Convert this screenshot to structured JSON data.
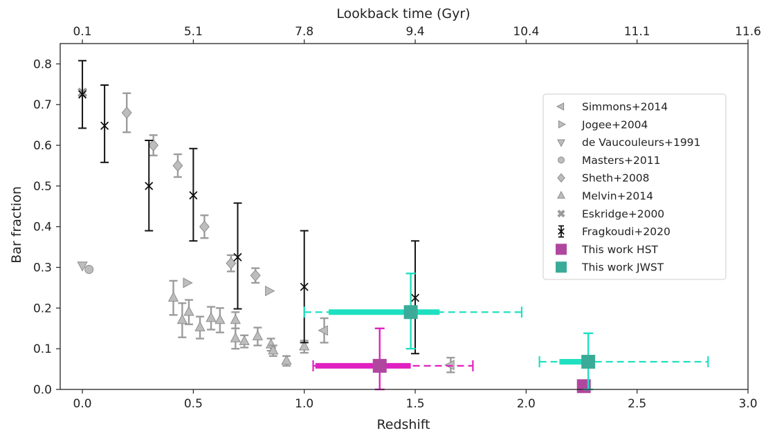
{
  "chart_data": {
    "type": "scatter",
    "xlabel": "Redshift",
    "ylabel": "Bar fraction",
    "top_xlabel": "Lookback time (Gyr)",
    "xlim": [
      -0.1,
      3.0
    ],
    "ylim": [
      0.0,
      0.85
    ],
    "x_ticks": [
      0.0,
      0.5,
      1.0,
      1.5,
      2.0,
      2.5,
      3.0
    ],
    "x_tick_labels": [
      "0.0",
      "0.5",
      "1.0",
      "1.5",
      "2.0",
      "2.5",
      "3.0"
    ],
    "y_ticks": [
      0.0,
      0.1,
      0.2,
      0.3,
      0.4,
      0.5,
      0.6,
      0.7,
      0.8
    ],
    "y_tick_labels": [
      "0.0",
      "0.1",
      "0.2",
      "0.3",
      "0.4",
      "0.5",
      "0.6",
      "0.7",
      "0.8"
    ],
    "top_ticks": [
      {
        "z": 0.0,
        "label": "0.1"
      },
      {
        "z": 0.5,
        "label": "5.1"
      },
      {
        "z": 1.0,
        "label": "7.8"
      },
      {
        "z": 1.5,
        "label": "9.4"
      },
      {
        "z": 2.0,
        "label": "10.4"
      },
      {
        "z": 2.5,
        "label": "11.1"
      },
      {
        "z": 3.0,
        "label": "11.6"
      }
    ],
    "legend_position": "right",
    "series": [
      {
        "name": "Simmons+2014",
        "marker": "triangle-left",
        "color": "#bdbdbd",
        "points": [
          {
            "x": 1.09,
            "y": 0.145,
            "err": 0.03
          },
          {
            "x": 1.66,
            "y": 0.06,
            "err": 0.018
          }
        ]
      },
      {
        "name": "Jogee+2004",
        "marker": "triangle-right",
        "color": "#bdbdbd",
        "points": [
          {
            "x": 0.47,
            "y": 0.262
          },
          {
            "x": 0.84,
            "y": 0.242
          }
        ]
      },
      {
        "name": "de Vaucouleurs+1991",
        "marker": "triangle-down",
        "color": "#bdbdbd",
        "points": [
          {
            "x": 0.0,
            "y": 0.305
          }
        ]
      },
      {
        "name": "Masters+2011",
        "marker": "circle",
        "color": "#bdbdbd",
        "points": [
          {
            "x": 0.03,
            "y": 0.295
          }
        ]
      },
      {
        "name": "Sheth+2008",
        "marker": "diamond",
        "color": "#bdbdbd",
        "points": [
          {
            "x": 0.2,
            "y": 0.68,
            "err": 0.048
          },
          {
            "x": 0.32,
            "y": 0.6,
            "err": 0.025
          },
          {
            "x": 0.43,
            "y": 0.55,
            "err": 0.028
          },
          {
            "x": 0.55,
            "y": 0.4,
            "err": 0.028
          },
          {
            "x": 0.67,
            "y": 0.31,
            "err": 0.02
          },
          {
            "x": 0.78,
            "y": 0.28,
            "err": 0.018
          }
        ]
      },
      {
        "name": "Melvin+2014",
        "marker": "triangle-up",
        "color": "#bdbdbd",
        "points": [
          {
            "x": 0.41,
            "y": 0.225,
            "err": 0.042
          },
          {
            "x": 0.45,
            "y": 0.17,
            "err": 0.042
          },
          {
            "x": 0.48,
            "y": 0.19,
            "err": 0.03
          },
          {
            "x": 0.53,
            "y": 0.152,
            "err": 0.027
          },
          {
            "x": 0.58,
            "y": 0.175,
            "err": 0.028
          },
          {
            "x": 0.62,
            "y": 0.17,
            "err": 0.03
          },
          {
            "x": 0.69,
            "y": 0.17,
            "err": 0.02
          },
          {
            "x": 0.69,
            "y": 0.125,
            "err": 0.025
          },
          {
            "x": 0.73,
            "y": 0.118,
            "err": 0.015
          },
          {
            "x": 0.79,
            "y": 0.13,
            "err": 0.022
          },
          {
            "x": 0.85,
            "y": 0.11,
            "err": 0.015
          },
          {
            "x": 0.86,
            "y": 0.095,
            "err": 0.013
          },
          {
            "x": 0.92,
            "y": 0.07,
            "err": 0.012
          },
          {
            "x": 1.0,
            "y": 0.105,
            "err": 0.015
          }
        ]
      },
      {
        "name": "Eskridge+2000",
        "marker": "x-filled",
        "color": "#bdbdbd",
        "points": [
          {
            "x": 0.0,
            "y": 0.73
          }
        ]
      },
      {
        "name": "Fragkoudi+2020",
        "marker": "x-errorbar",
        "color": "#111111",
        "points": [
          {
            "x": 0.0,
            "y": 0.725,
            "ylo": 0.642,
            "yhi": 0.808
          },
          {
            "x": 0.1,
            "y": 0.648,
            "ylo": 0.558,
            "yhi": 0.748
          },
          {
            "x": 0.3,
            "y": 0.5,
            "ylo": 0.39,
            "yhi": 0.612
          },
          {
            "x": 0.5,
            "y": 0.477,
            "ylo": 0.365,
            "yhi": 0.592
          },
          {
            "x": 0.7,
            "y": 0.325,
            "ylo": 0.198,
            "yhi": 0.458
          },
          {
            "x": 1.0,
            "y": 0.252,
            "ylo": 0.115,
            "yhi": 0.39
          },
          {
            "x": 1.5,
            "y": 0.225,
            "ylo": 0.088,
            "yhi": 0.365
          }
        ]
      },
      {
        "name": "This work HST",
        "marker": "square",
        "color": "#b0479e",
        "points": [
          {
            "x": 1.34,
            "y": 0.058,
            "ylo": 0.0,
            "yhi": 0.15,
            "x_thick": [
              1.05,
              1.48
            ],
            "x_dashed": [
              1.04,
              1.76
            ],
            "line_color": "#e020c0"
          },
          {
            "x": 2.26,
            "y": 0.008
          }
        ]
      },
      {
        "name": "This work JWST",
        "marker": "square",
        "color": "#3aab98",
        "points": [
          {
            "x": 1.48,
            "y": 0.19,
            "ylo": 0.1,
            "yhi": 0.285,
            "x_thick": [
              1.11,
              1.61
            ],
            "x_dashed": [
              1.0,
              1.98
            ],
            "line_color": "#1ee0c0"
          },
          {
            "x": 2.28,
            "y": 0.068,
            "ylo": 0.0,
            "yhi": 0.138,
            "x_thick": [
              2.15,
              2.3
            ],
            "x_dashed": [
              2.06,
              2.82
            ],
            "line_color": "#1ee0c0"
          }
        ]
      }
    ]
  }
}
